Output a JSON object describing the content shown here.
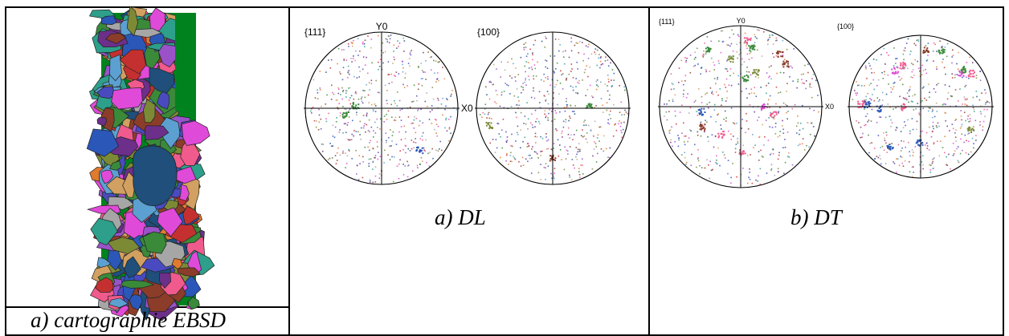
{
  "figure": {
    "left_panel": {
      "caption": "a) cartographie EBSD",
      "map_background_color": "#00831f"
    },
    "middle_panel": {
      "caption": "a) DL",
      "pole_figures": [
        {
          "label": "{111}",
          "top_axis_label": "Y0",
          "right_axis_label": "X0"
        },
        {
          "label": "{100}"
        }
      ]
    },
    "right_panel": {
      "caption": "b) DT",
      "pole_figures": [
        {
          "label": "{111}",
          "top_axis_label": "Y0",
          "right_axis_label": "X0"
        },
        {
          "label": "{100}"
        }
      ]
    }
  },
  "colors": {
    "border": "#000000",
    "grain_palette": [
      "#e04ad8",
      "#3a8a3a",
      "#2b57b8",
      "#8b3d2a",
      "#7c8a36",
      "#f05a8c",
      "#5ba0d0",
      "#9a52c8",
      "#d2a060",
      "#2d9f8a",
      "#c43030",
      "#4a4ac0",
      "#a6a6a6",
      "#6c2f8a",
      "#e07a2f",
      "#1f4f7a"
    ]
  }
}
